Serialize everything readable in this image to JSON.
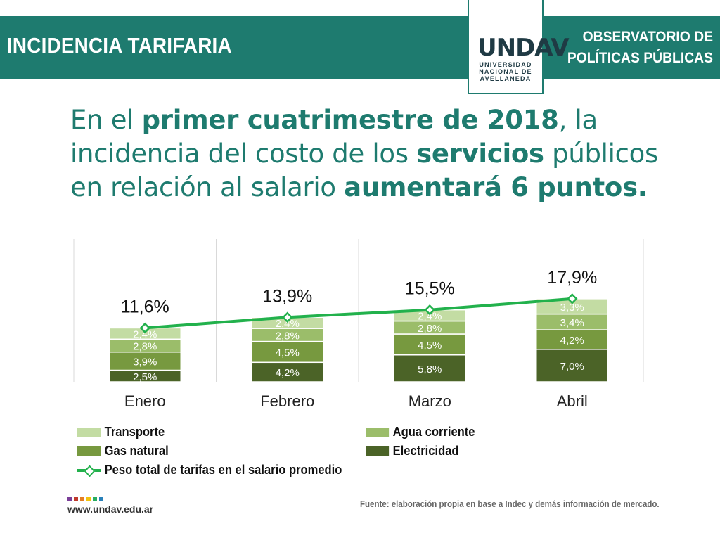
{
  "header": {
    "title": "INCIDENCIA TARIFARIA",
    "org_line1": "OBSERVATORIO DE",
    "org_line2": "POLÍTICAS PÚBLICAS"
  },
  "logo": {
    "mark": "UNDAV",
    "line1": "UNIVERSIDAD",
    "line2": "NACIONAL DE",
    "line3": "AVELLANEDA"
  },
  "headline": {
    "p1": "En el ",
    "b1": "primer cuatrimestre de 2018",
    "p2": ", la incidencia del costo de los ",
    "b2": "servicios",
    "p3": " públicos en relación al salario ",
    "b3": "aumentará 6 puntos."
  },
  "chart_data": {
    "type": "bar",
    "stacked": true,
    "categories": [
      "Enero",
      "Febrero",
      "Marzo",
      "Abril"
    ],
    "series": [
      {
        "name": "Electricidad",
        "values": [
          2.5,
          4.2,
          5.8,
          7.0
        ],
        "labels": [
          "2,5%",
          "4,2%",
          "5,8%",
          "7,0%"
        ],
        "color": "#4b6327"
      },
      {
        "name": "Gas natural",
        "values": [
          3.9,
          4.5,
          4.5,
          4.2
        ],
        "labels": [
          "3,9%",
          "4,5%",
          "4,5%",
          "4,2%"
        ],
        "color": "#77993f"
      },
      {
        "name": "Agua corriente",
        "values": [
          2.8,
          2.8,
          2.8,
          3.4
        ],
        "labels": [
          "2,8%",
          "2,8%",
          "2,8%",
          "3,4%"
        ],
        "color": "#9bbd6a"
      },
      {
        "name": "Transporte",
        "values": [
          2.4,
          2.4,
          2.4,
          3.3
        ],
        "labels": [
          "2,4%",
          "2,4%",
          "2,4%",
          "3,3%"
        ],
        "color": "#c3dca3"
      }
    ],
    "line": {
      "name": "Peso total de tarifas en el salario promedio",
      "values": [
        11.6,
        13.9,
        15.5,
        17.9
      ],
      "labels": [
        "11,6%",
        "13,9%",
        "15,5%",
        "17,9%"
      ],
      "color": "#22b14c"
    },
    "ylim": [
      0,
      20
    ],
    "title": "",
    "xlabel": "",
    "ylabel": "",
    "legend_position": "bottom"
  },
  "legend": {
    "transporte": "Transporte",
    "agua": "Agua corriente",
    "gas": "Gas natural",
    "electricidad": "Electricidad",
    "peso": "Peso total de tarifas en el salario promedio"
  },
  "footer": {
    "url": "www.undav.edu.ar",
    "source": "Fuente: elaboración propia en base a Indec y demás información de mercado.",
    "dot_colors": [
      "#7b3f98",
      "#c0392b",
      "#e67e22",
      "#f1c40f",
      "#27ae60",
      "#2980b9"
    ]
  }
}
